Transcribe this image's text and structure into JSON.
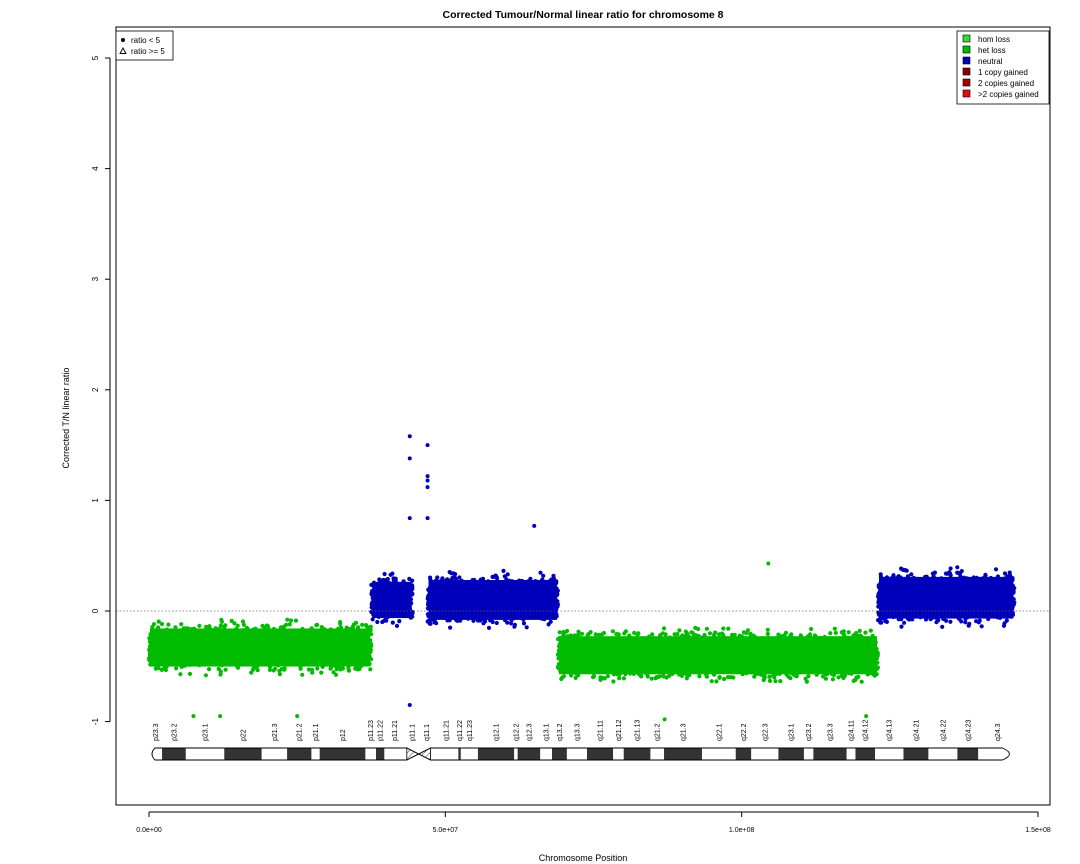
{
  "chart_data": {
    "type": "scatter",
    "title": "Corrected Tumour/Normal linear ratio for chromosome  8",
    "xlabel": "Chromosome Position",
    "ylabel": "Corrected T/N linear ratio",
    "xlim": [
      0,
      150000000
    ],
    "ylim": [
      -1.8,
      5.2
    ],
    "x_ticks": [
      {
        "value": 0,
        "label": "0.0e+00"
      },
      {
        "value": 50000000,
        "label": "5.0e+07"
      },
      {
        "value": 100000000,
        "label": "1.0e+08"
      },
      {
        "value": 150000000,
        "label": "1.5e+08"
      }
    ],
    "y_ticks": [
      {
        "value": -1,
        "label": "-1"
      },
      {
        "value": 0,
        "label": "0"
      },
      {
        "value": 1,
        "label": "1"
      },
      {
        "value": 2,
        "label": "2"
      },
      {
        "value": 3,
        "label": "3"
      },
      {
        "value": 4,
        "label": "4"
      },
      {
        "value": 5,
        "label": "5"
      }
    ],
    "reference_line": 0,
    "legend_shape": [
      {
        "symbol": "dot",
        "label": "ratio < 5"
      },
      {
        "symbol": "triangle",
        "label": "ratio >= 5"
      }
    ],
    "legend_state": [
      {
        "label": "hom loss",
        "color": "#33dd33"
      },
      {
        "label": "het loss",
        "color": "#00bb00"
      },
      {
        "label": "neutral",
        "color": "#0000bb"
      },
      {
        "label": "1 copy gained",
        "color": "#880000"
      },
      {
        "label": "2 copies gained",
        "color": "#aa0000"
      },
      {
        "label": ">2 copies gained",
        "color": "#dd1111"
      }
    ],
    "segments": [
      {
        "state": "het loss",
        "color": "#00bb00",
        "start": 0,
        "end": 37500000,
        "mean": -0.33,
        "spread": 0.21
      },
      {
        "state": "neutral",
        "color": "#0000bb",
        "start": 37500000,
        "end": 44500000,
        "mean": 0.1,
        "spread": 0.2
      },
      {
        "state": "neutral",
        "color": "#0000bb",
        "start": 47000000,
        "end": 69000000,
        "mean": 0.1,
        "spread": 0.22
      },
      {
        "state": "het loss",
        "color": "#00bb00",
        "start": 69000000,
        "end": 123000000,
        "mean": -0.4,
        "spread": 0.21
      },
      {
        "state": "neutral",
        "color": "#0000bb",
        "start": 123000000,
        "end": 146000000,
        "mean": 0.12,
        "spread": 0.23
      }
    ],
    "outliers": [
      {
        "x": 44000000,
        "y": 1.58,
        "color": "#0000bb"
      },
      {
        "x": 44000000,
        "y": 1.38,
        "color": "#0000bb"
      },
      {
        "x": 47000000,
        "y": 1.5,
        "color": "#0000bb"
      },
      {
        "x": 47000000,
        "y": 1.22,
        "color": "#0000bb"
      },
      {
        "x": 47000000,
        "y": 1.18,
        "color": "#0000bb"
      },
      {
        "x": 47000000,
        "y": 1.12,
        "color": "#0000bb"
      },
      {
        "x": 44000000,
        "y": 0.84,
        "color": "#0000bb"
      },
      {
        "x": 47000000,
        "y": 0.84,
        "color": "#0000bb"
      },
      {
        "x": 65000000,
        "y": 0.77,
        "color": "#0000bb"
      },
      {
        "x": 44000000,
        "y": -0.85,
        "color": "#0000bb"
      },
      {
        "x": 104500000,
        "y": 0.43,
        "color": "#00bb00"
      },
      {
        "x": 7500000,
        "y": -0.95,
        "color": "#00bb00"
      },
      {
        "x": 12000000,
        "y": -0.95,
        "color": "#00bb00"
      },
      {
        "x": 25000000,
        "y": -0.95,
        "color": "#00bb00"
      },
      {
        "x": 87000000,
        "y": -0.98,
        "color": "#00bb00"
      },
      {
        "x": 121000000,
        "y": -0.95,
        "color": "#00bb00"
      }
    ],
    "ideogram": {
      "centromere": [
        43500000,
        47500000
      ],
      "stalks": [
        [
          44200000,
          46700000
        ]
      ],
      "bands": [
        {
          "name": "p23.3",
          "start": 0,
          "end": 2200000,
          "stain": "white"
        },
        {
          "name": "p23.2",
          "start": 2200000,
          "end": 6200000,
          "stain": "dark"
        },
        {
          "name": "p23.1",
          "start": 6200000,
          "end": 12700000,
          "stain": "white"
        },
        {
          "name": "p22",
          "start": 12700000,
          "end": 19000000,
          "stain": "dark"
        },
        {
          "name": "p21.3",
          "start": 19000000,
          "end": 23300000,
          "stain": "white"
        },
        {
          "name": "p21.2",
          "start": 23300000,
          "end": 27400000,
          "stain": "dark"
        },
        {
          "name": "p21.1",
          "start": 27400000,
          "end": 28800000,
          "stain": "white"
        },
        {
          "name": "p12",
          "start": 28800000,
          "end": 36500000,
          "stain": "dark"
        },
        {
          "name": "p11.23",
          "start": 36500000,
          "end": 38300000,
          "stain": "white"
        },
        {
          "name": "p11.22",
          "start": 38300000,
          "end": 39700000,
          "stain": "dark"
        },
        {
          "name": "p11.21",
          "start": 39700000,
          "end": 43100000,
          "stain": "white"
        },
        {
          "name": "p11.1",
          "start": 43100000,
          "end": 45600000,
          "stain": "centromere"
        },
        {
          "name": "q11.1",
          "start": 45600000,
          "end": 48100000,
          "stain": "centromere"
        },
        {
          "name": "q11.21",
          "start": 48100000,
          "end": 52200000,
          "stain": "white"
        },
        {
          "name": "q11.22",
          "start": 52200000,
          "end": 52600000,
          "stain": "dark"
        },
        {
          "name": "q11.23",
          "start": 52600000,
          "end": 55500000,
          "stain": "white"
        },
        {
          "name": "q12.1",
          "start": 55500000,
          "end": 61600000,
          "stain": "dark"
        },
        {
          "name": "q12.2",
          "start": 61600000,
          "end": 62200000,
          "stain": "white"
        },
        {
          "name": "q12.3",
          "start": 62200000,
          "end": 66000000,
          "stain": "dark"
        },
        {
          "name": "q13.1",
          "start": 66000000,
          "end": 68000000,
          "stain": "white"
        },
        {
          "name": "q13.2",
          "start": 68000000,
          "end": 70500000,
          "stain": "dark"
        },
        {
          "name": "q13.3",
          "start": 70500000,
          "end": 73900000,
          "stain": "white"
        },
        {
          "name": "q21.11",
          "start": 73900000,
          "end": 78300000,
          "stain": "dark"
        },
        {
          "name": "q21.12",
          "start": 78300000,
          "end": 80100000,
          "stain": "white"
        },
        {
          "name": "q21.13",
          "start": 80100000,
          "end": 84600000,
          "stain": "dark"
        },
        {
          "name": "q21.2",
          "start": 84600000,
          "end": 86900000,
          "stain": "white"
        },
        {
          "name": "q21.3",
          "start": 86900000,
          "end": 93300000,
          "stain": "dark"
        },
        {
          "name": "q22.1",
          "start": 93300000,
          "end": 99000000,
          "stain": "white"
        },
        {
          "name": "q22.2",
          "start": 99000000,
          "end": 101600000,
          "stain": "dark"
        },
        {
          "name": "q22.3",
          "start": 101600000,
          "end": 106200000,
          "stain": "white"
        },
        {
          "name": "q23.1",
          "start": 106200000,
          "end": 110500000,
          "stain": "dark"
        },
        {
          "name": "q23.2",
          "start": 110500000,
          "end": 112100000,
          "stain": "white"
        },
        {
          "name": "q23.3",
          "start": 112100000,
          "end": 117700000,
          "stain": "dark"
        },
        {
          "name": "q24.11",
          "start": 117700000,
          "end": 119200000,
          "stain": "white"
        },
        {
          "name": "q24.12",
          "start": 119200000,
          "end": 122500000,
          "stain": "dark"
        },
        {
          "name": "q24.13",
          "start": 122500000,
          "end": 127300000,
          "stain": "white"
        },
        {
          "name": "q24.21",
          "start": 127300000,
          "end": 131500000,
          "stain": "dark"
        },
        {
          "name": "q24.22",
          "start": 131500000,
          "end": 136400000,
          "stain": "white"
        },
        {
          "name": "q24.23",
          "start": 136400000,
          "end": 139900000,
          "stain": "dark"
        },
        {
          "name": "q24.3",
          "start": 139900000,
          "end": 146364022,
          "stain": "white"
        }
      ]
    }
  }
}
